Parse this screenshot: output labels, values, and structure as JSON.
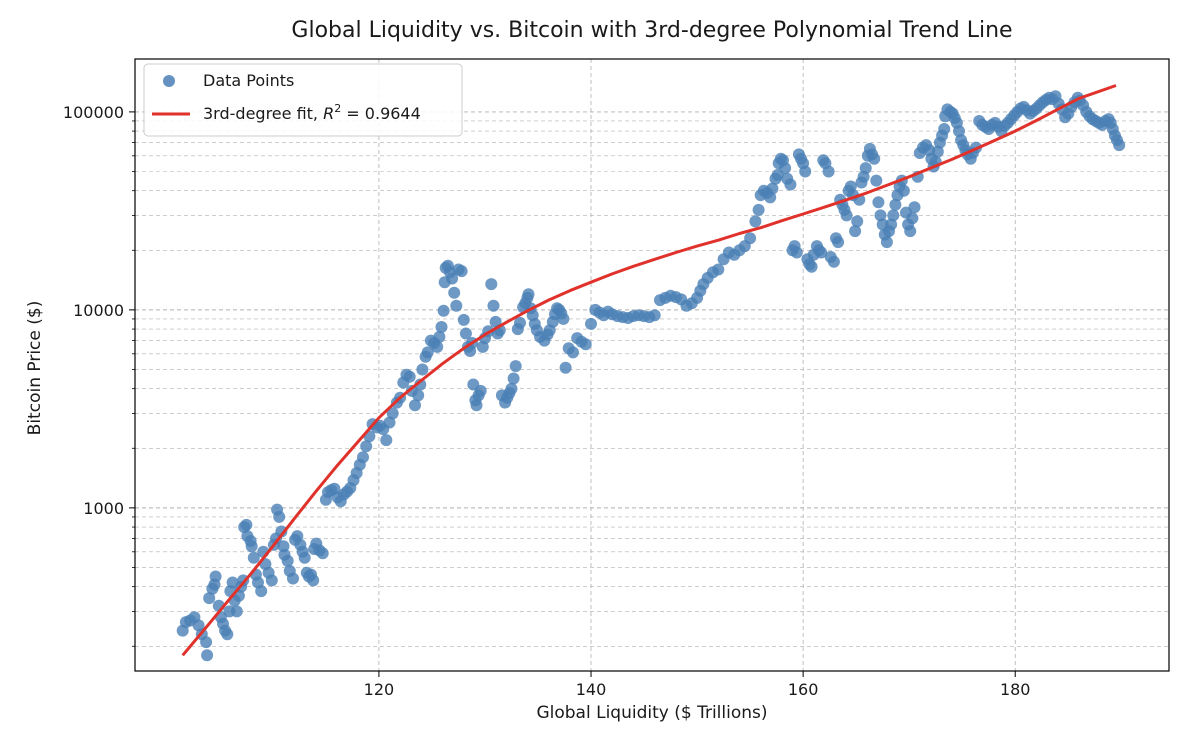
{
  "chart_data": {
    "type": "scatter",
    "title": "Global Liquidity vs. Bitcoin with 3rd-degree Polynomial Trend Line",
    "xlabel": "Global Liquidity ($ Trillions)",
    "ylabel": "Bitcoin Price ($)",
    "xlim": [
      97,
      194.5
    ],
    "ylim": [
      150,
      185000
    ],
    "yscale": "log",
    "grid": true,
    "legend_position": "top-left",
    "x_ticks": [
      120,
      140,
      160,
      180
    ],
    "y_ticks": [
      1000,
      10000,
      100000
    ],
    "y_tick_labels": [
      "1000",
      "10000",
      "100000"
    ],
    "legend": [
      {
        "label": "Data Points",
        "kind": "marker"
      },
      {
        "label": "3rd-degree fit, ",
        "math": "R",
        "math_sup": "2",
        "math_tail": " = 0.9644",
        "kind": "line"
      }
    ],
    "colors": {
      "points": "#4a7fb5",
      "fit": "#e0312b",
      "grid": "#b0b0b0"
    },
    "fit": {
      "name": "3rd-degree fit",
      "r_squared": 0.9644,
      "x": [
        101.5,
        104,
        106,
        108,
        110,
        112,
        114,
        116,
        118,
        120,
        122,
        124,
        126,
        128,
        130,
        132,
        134,
        136,
        138,
        140,
        142,
        144,
        146,
        148,
        150,
        152,
        154,
        156,
        158,
        160,
        162,
        164,
        166,
        168,
        170,
        172,
        174,
        176,
        178,
        180,
        182,
        184,
        186,
        189.5
      ],
      "y": [
        180,
        260,
        350,
        470,
        640,
        880,
        1200,
        1620,
        2150,
        2850,
        3600,
        4400,
        5350,
        6400,
        7500,
        8650,
        9900,
        11200,
        12500,
        13800,
        15200,
        16600,
        18000,
        19500,
        21000,
        22500,
        24300,
        26000,
        28200,
        30500,
        33000,
        35800,
        39000,
        42800,
        47000,
        52000,
        57500,
        64000,
        71500,
        80000,
        90500,
        103000,
        117000,
        136000
      ]
    },
    "points": [
      [
        101.5,
        240
      ],
      [
        101.8,
        265
      ],
      [
        102.2,
        270
      ],
      [
        102.6,
        280
      ],
      [
        103.0,
        255
      ],
      [
        103.3,
        230
      ],
      [
        103.7,
        210
      ],
      [
        103.8,
        180
      ],
      [
        104.0,
        350
      ],
      [
        104.3,
        390
      ],
      [
        104.5,
        410
      ],
      [
        104.6,
        450
      ],
      [
        104.9,
        320
      ],
      [
        105.1,
        280
      ],
      [
        105.3,
        260
      ],
      [
        105.5,
        240
      ],
      [
        105.7,
        230
      ],
      [
        105.9,
        300
      ],
      [
        106.0,
        380
      ],
      [
        106.2,
        420
      ],
      [
        106.4,
        340
      ],
      [
        106.6,
        300
      ],
      [
        106.8,
        360
      ],
      [
        107.0,
        400
      ],
      [
        107.2,
        430
      ],
      [
        107.3,
        800
      ],
      [
        107.5,
        820
      ],
      [
        107.6,
        720
      ],
      [
        107.9,
        680
      ],
      [
        108.0,
        640
      ],
      [
        108.2,
        560
      ],
      [
        108.4,
        460
      ],
      [
        108.6,
        420
      ],
      [
        108.9,
        380
      ],
      [
        109.1,
        600
      ],
      [
        109.3,
        520
      ],
      [
        109.6,
        470
      ],
      [
        109.9,
        430
      ],
      [
        110.1,
        650
      ],
      [
        110.3,
        700
      ],
      [
        110.4,
        980
      ],
      [
        110.6,
        900
      ],
      [
        110.8,
        760
      ],
      [
        111.0,
        640
      ],
      [
        111.1,
        580
      ],
      [
        111.4,
        540
      ],
      [
        111.6,
        480
      ],
      [
        111.9,
        440
      ],
      [
        112.1,
        690
      ],
      [
        112.3,
        720
      ],
      [
        112.6,
        650
      ],
      [
        112.8,
        600
      ],
      [
        113.0,
        560
      ],
      [
        113.2,
        470
      ],
      [
        113.4,
        450
      ],
      [
        113.6,
        460
      ],
      [
        113.8,
        430
      ],
      [
        113.9,
        620
      ],
      [
        114.1,
        660
      ],
      [
        114.4,
        610
      ],
      [
        114.7,
        590
      ],
      [
        115.0,
        1100
      ],
      [
        115.2,
        1200
      ],
      [
        115.5,
        1230
      ],
      [
        115.8,
        1250
      ],
      [
        116.1,
        1130
      ],
      [
        116.4,
        1080
      ],
      [
        116.7,
        1170
      ],
      [
        117.0,
        1210
      ],
      [
        117.3,
        1260
      ],
      [
        117.6,
        1380
      ],
      [
        117.9,
        1500
      ],
      [
        118.2,
        1650
      ],
      [
        118.5,
        1800
      ],
      [
        118.8,
        2050
      ],
      [
        119.1,
        2300
      ],
      [
        119.4,
        2650
      ],
      [
        119.8,
        2550
      ],
      [
        120.1,
        2600
      ],
      [
        120.4,
        2500
      ],
      [
        120.7,
        2200
      ],
      [
        121.0,
        2700
      ],
      [
        121.3,
        3000
      ],
      [
        121.7,
        3400
      ],
      [
        122.0,
        3600
      ],
      [
        122.3,
        4300
      ],
      [
        122.6,
        4700
      ],
      [
        122.9,
        4600
      ],
      [
        123.1,
        3900
      ],
      [
        123.4,
        3300
      ],
      [
        123.7,
        3700
      ],
      [
        123.9,
        4200
      ],
      [
        124.1,
        5000
      ],
      [
        124.4,
        5800
      ],
      [
        124.6,
        6100
      ],
      [
        124.9,
        7000
      ],
      [
        125.2,
        6800
      ],
      [
        125.5,
        6500
      ],
      [
        125.7,
        7300
      ],
      [
        125.9,
        8200
      ],
      [
        126.1,
        9900
      ],
      [
        126.2,
        13800
      ],
      [
        126.3,
        16300
      ],
      [
        126.5,
        16700
      ],
      [
        126.7,
        15500
      ],
      [
        126.9,
        14400
      ],
      [
        127.1,
        12200
      ],
      [
        127.3,
        10500
      ],
      [
        127.5,
        16000
      ],
      [
        127.8,
        15700
      ],
      [
        128.0,
        8900
      ],
      [
        128.2,
        7600
      ],
      [
        128.4,
        6500
      ],
      [
        128.6,
        6200
      ],
      [
        128.8,
        6800
      ],
      [
        128.9,
        4200
      ],
      [
        129.1,
        3500
      ],
      [
        129.2,
        3300
      ],
      [
        129.4,
        3700
      ],
      [
        129.6,
        3900
      ],
      [
        129.8,
        6500
      ],
      [
        130.0,
        7200
      ],
      [
        130.3,
        7800
      ],
      [
        130.6,
        13500
      ],
      [
        130.8,
        10500
      ],
      [
        131.0,
        8700
      ],
      [
        131.2,
        7600
      ],
      [
        131.4,
        7900
      ],
      [
        131.6,
        3700
      ],
      [
        131.9,
        3400
      ],
      [
        132.1,
        3600
      ],
      [
        132.3,
        3800
      ],
      [
        132.5,
        4000
      ],
      [
        132.7,
        4500
      ],
      [
        132.9,
        5200
      ],
      [
        133.1,
        8000
      ],
      [
        133.3,
        8600
      ],
      [
        133.6,
        10300
      ],
      [
        133.8,
        10800
      ],
      [
        134.0,
        11500
      ],
      [
        134.1,
        12000
      ],
      [
        134.3,
        10200
      ],
      [
        134.5,
        9400
      ],
      [
        134.7,
        8500
      ],
      [
        134.9,
        7900
      ],
      [
        135.2,
        7300
      ],
      [
        135.6,
        7000
      ],
      [
        135.9,
        7500
      ],
      [
        136.1,
        7900
      ],
      [
        136.4,
        8700
      ],
      [
        136.6,
        9500
      ],
      [
        136.8,
        10200
      ],
      [
        137.0,
        10000
      ],
      [
        137.2,
        9600
      ],
      [
        137.4,
        9000
      ],
      [
        137.6,
        5100
      ],
      [
        137.9,
        6400
      ],
      [
        138.3,
        6100
      ],
      [
        138.7,
        7200
      ],
      [
        139.1,
        6900
      ],
      [
        139.5,
        6700
      ],
      [
        140.0,
        8500
      ],
      [
        140.4,
        10000
      ],
      [
        140.8,
        9700
      ],
      [
        141.2,
        9400
      ],
      [
        141.6,
        9800
      ],
      [
        142.0,
        9500
      ],
      [
        142.5,
        9300
      ],
      [
        143.0,
        9200
      ],
      [
        143.5,
        9100
      ],
      [
        144.0,
        9300
      ],
      [
        144.5,
        9400
      ],
      [
        145.0,
        9300
      ],
      [
        145.5,
        9200
      ],
      [
        146.0,
        9400
      ],
      [
        146.5,
        11200
      ],
      [
        147.0,
        11500
      ],
      [
        147.5,
        11800
      ],
      [
        148.0,
        11600
      ],
      [
        148.5,
        11300
      ],
      [
        149.0,
        10500
      ],
      [
        149.5,
        10800
      ],
      [
        150.0,
        11500
      ],
      [
        150.3,
        12500
      ],
      [
        150.6,
        13500
      ],
      [
        151.0,
        14500
      ],
      [
        151.5,
        15500
      ],
      [
        152.0,
        16000
      ],
      [
        152.5,
        18000
      ],
      [
        153.0,
        19500
      ],
      [
        153.5,
        19000
      ],
      [
        154.0,
        20000
      ],
      [
        154.5,
        21000
      ],
      [
        155.0,
        23000
      ],
      [
        155.5,
        28000
      ],
      [
        155.8,
        32000
      ],
      [
        156.0,
        38000
      ],
      [
        156.3,
        40000
      ],
      [
        156.6,
        39000
      ],
      [
        156.9,
        37000
      ],
      [
        157.1,
        41000
      ],
      [
        157.4,
        46000
      ],
      [
        157.6,
        48000
      ],
      [
        157.7,
        55000
      ],
      [
        157.9,
        58000
      ],
      [
        158.1,
        57000
      ],
      [
        158.3,
        52000
      ],
      [
        158.5,
        46000
      ],
      [
        158.8,
        43000
      ],
      [
        159.0,
        20000
      ],
      [
        159.2,
        21000
      ],
      [
        159.4,
        19500
      ],
      [
        159.6,
        61000
      ],
      [
        159.8,
        58000
      ],
      [
        160.0,
        55000
      ],
      [
        160.2,
        50000
      ],
      [
        160.4,
        18000
      ],
      [
        160.6,
        17000
      ],
      [
        160.8,
        16500
      ],
      [
        161.0,
        19000
      ],
      [
        161.3,
        21000
      ],
      [
        161.5,
        20000
      ],
      [
        161.7,
        19500
      ],
      [
        161.9,
        57000
      ],
      [
        162.1,
        55000
      ],
      [
        162.4,
        50000
      ],
      [
        162.6,
        18500
      ],
      [
        162.9,
        17500
      ],
      [
        163.1,
        23000
      ],
      [
        163.3,
        22000
      ],
      [
        163.5,
        36000
      ],
      [
        163.7,
        34000
      ],
      [
        163.9,
        32000
      ],
      [
        164.1,
        30000
      ],
      [
        164.3,
        40000
      ],
      [
        164.5,
        42000
      ],
      [
        164.7,
        38000
      ],
      [
        164.9,
        25000
      ],
      [
        165.1,
        28000
      ],
      [
        165.3,
        36000
      ],
      [
        165.5,
        44000
      ],
      [
        165.7,
        47000
      ],
      [
        165.9,
        52000
      ],
      [
        166.1,
        60000
      ],
      [
        166.3,
        65000
      ],
      [
        166.5,
        61000
      ],
      [
        166.7,
        58000
      ],
      [
        166.9,
        45000
      ],
      [
        167.1,
        35000
      ],
      [
        167.3,
        30000
      ],
      [
        167.5,
        27000
      ],
      [
        167.7,
        24000
      ],
      [
        167.9,
        22000
      ],
      [
        168.1,
        25000
      ],
      [
        168.3,
        27000
      ],
      [
        168.5,
        30000
      ],
      [
        168.7,
        34000
      ],
      [
        168.9,
        38000
      ],
      [
        169.1,
        42000
      ],
      [
        169.3,
        45000
      ],
      [
        169.5,
        40000
      ],
      [
        169.7,
        31000
      ],
      [
        169.9,
        27000
      ],
      [
        170.1,
        25000
      ],
      [
        170.3,
        29000
      ],
      [
        170.5,
        33000
      ],
      [
        170.8,
        47000
      ],
      [
        171.0,
        62000
      ],
      [
        171.3,
        66000
      ],
      [
        171.6,
        68000
      ],
      [
        171.9,
        64000
      ],
      [
        172.1,
        58000
      ],
      [
        172.3,
        53000
      ],
      [
        172.5,
        56000
      ],
      [
        172.7,
        63000
      ],
      [
        172.9,
        70000
      ],
      [
        173.1,
        76000
      ],
      [
        173.3,
        82000
      ],
      [
        173.4,
        95000
      ],
      [
        173.6,
        103000
      ],
      [
        173.9,
        100000
      ],
      [
        174.1,
        98000
      ],
      [
        174.3,
        93000
      ],
      [
        174.5,
        88000
      ],
      [
        174.7,
        80000
      ],
      [
        174.9,
        72000
      ],
      [
        175.1,
        68000
      ],
      [
        175.3,
        64000
      ],
      [
        175.5,
        61000
      ],
      [
        175.8,
        58000
      ],
      [
        176.0,
        62000
      ],
      [
        176.3,
        66000
      ],
      [
        176.6,
        90000
      ],
      [
        176.9,
        86000
      ],
      [
        177.2,
        84000
      ],
      [
        177.5,
        82000
      ],
      [
        177.8,
        86000
      ],
      [
        178.1,
        88000
      ],
      [
        178.4,
        84000
      ],
      [
        178.7,
        80000
      ],
      [
        179.0,
        85000
      ],
      [
        179.3,
        88000
      ],
      [
        179.6,
        92000
      ],
      [
        179.9,
        96000
      ],
      [
        180.2,
        100000
      ],
      [
        180.5,
        104000
      ],
      [
        180.8,
        106000
      ],
      [
        181.1,
        102000
      ],
      [
        181.4,
        98000
      ],
      [
        181.7,
        101000
      ],
      [
        182.0,
        104000
      ],
      [
        182.3,
        108000
      ],
      [
        182.6,
        112000
      ],
      [
        182.9,
        115000
      ],
      [
        183.2,
        118000
      ],
      [
        183.5,
        116000
      ],
      [
        183.8,
        120000
      ],
      [
        184.1,
        110000
      ],
      [
        184.4,
        103000
      ],
      [
        184.7,
        94000
      ],
      [
        185.0,
        98000
      ],
      [
        185.3,
        106000
      ],
      [
        185.6,
        112000
      ],
      [
        185.9,
        118000
      ],
      [
        186.1,
        114000
      ],
      [
        186.4,
        108000
      ],
      [
        186.7,
        100000
      ],
      [
        187.0,
        95000
      ],
      [
        187.3,
        92000
      ],
      [
        187.6,
        90000
      ],
      [
        187.9,
        88000
      ],
      [
        188.2,
        86000
      ],
      [
        188.5,
        90000
      ],
      [
        188.8,
        92000
      ],
      [
        189.0,
        88000
      ],
      [
        189.2,
        82000
      ],
      [
        189.4,
        76000
      ],
      [
        189.6,
        72000
      ],
      [
        189.8,
        68000
      ]
    ]
  }
}
